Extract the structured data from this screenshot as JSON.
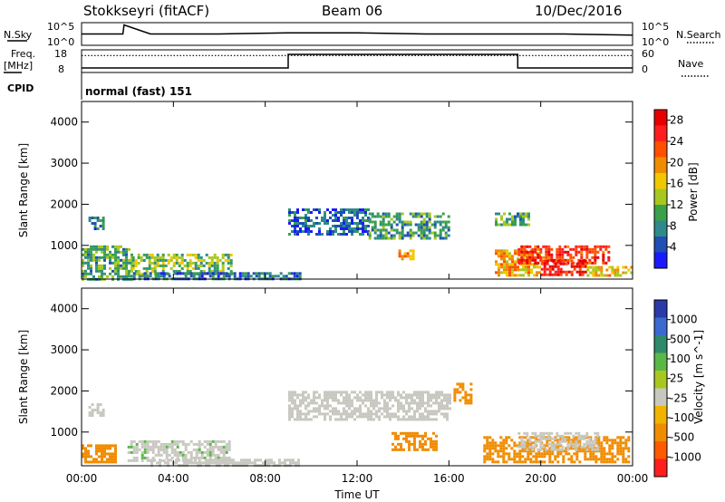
{
  "header": {
    "station": "Stokkseyri (fitACF)",
    "beam": "Beam 06",
    "date": "10/Dec/2016"
  },
  "strip_labels": {
    "nsky": "N.Sky",
    "nsky_top": "10^5",
    "nsky_bottom": "10^0",
    "nsearch": "N.Search",
    "nsearch_top": "10^5",
    "nsearch_bottom": "10^0",
    "freq_line1": "Freq.",
    "freq_line2": "[MHz]",
    "freq_top": "18",
    "freq_bottom": "8",
    "nave": "Nave",
    "nave_top": "60",
    "nave_bottom": "0",
    "cpid": "CPID",
    "cpid_value": "normal (fast) 151"
  },
  "colors": {
    "power": [
      "#1a1aff",
      "#1f4fb4",
      "#2e8a8a",
      "#3aa04a",
      "#a8c820",
      "#f0c800",
      "#f08c00",
      "#ff5000",
      "#ff1e1e",
      "#e60000"
    ],
    "velocity": [
      "#2a3aa8",
      "#3a6ad0",
      "#2e8a6a",
      "#5ab848",
      "#a8c820",
      "#c8c8c0",
      "#f0b400",
      "#f08c00",
      "#ff5a00",
      "#ff1e1e"
    ]
  },
  "chart_data": [
    {
      "type": "heatmap",
      "panel": "power",
      "ylabel": "Slant Range [km]",
      "ylim": [
        180,
        4500
      ],
      "xlim_hours": [
        0,
        24
      ],
      "x_ticks": [
        "00:00",
        "04:00",
        "08:00",
        "12:00",
        "16:00",
        "20:00",
        "00:00"
      ],
      "y_ticks": [
        1000,
        2000,
        3000,
        4000
      ],
      "colorbar": {
        "label": "Power [dB]",
        "ticks": [
          "4",
          "8",
          "12",
          "16",
          "20",
          "24",
          "28"
        ],
        "range": [
          0,
          30
        ]
      },
      "regions": [
        {
          "t0": 0.0,
          "t1": 2.2,
          "r0": 200,
          "r1": 1000,
          "value": 10
        },
        {
          "t0": 0.3,
          "t1": 1.0,
          "r0": 1400,
          "r1": 1700,
          "value": 7
        },
        {
          "t0": 2.2,
          "t1": 6.5,
          "r0": 300,
          "r1": 800,
          "value": 12
        },
        {
          "t0": 2.0,
          "t1": 9.5,
          "r0": 190,
          "r1": 350,
          "value": 6
        },
        {
          "t0": 9.0,
          "t1": 12.5,
          "r0": 1300,
          "r1": 1900,
          "value": 5
        },
        {
          "t0": 12.5,
          "t1": 16.0,
          "r0": 1200,
          "r1": 1800,
          "value": 9
        },
        {
          "t0": 13.8,
          "t1": 14.5,
          "r0": 700,
          "r1": 900,
          "value": 20
        },
        {
          "t0": 18.0,
          "t1": 20.0,
          "r0": 300,
          "r1": 900,
          "value": 18
        },
        {
          "t0": 19.0,
          "t1": 23.0,
          "r0": 550,
          "r1": 1000,
          "value": 25
        },
        {
          "t0": 20.0,
          "t1": 22.0,
          "r0": 300,
          "r1": 650,
          "value": 27
        },
        {
          "t0": 22.0,
          "t1": 23.9,
          "r0": 250,
          "r1": 500,
          "value": 17
        },
        {
          "t0": 18.0,
          "t1": 19.5,
          "r0": 1500,
          "r1": 1800,
          "value": 10
        }
      ]
    },
    {
      "type": "heatmap",
      "panel": "velocity",
      "xlabel": "Time UT",
      "ylabel": "Slant Range [km]",
      "ylim": [
        180,
        4500
      ],
      "xlim_hours": [
        0,
        24
      ],
      "x_ticks": [
        "00:00",
        "04:00",
        "08:00",
        "12:00",
        "16:00",
        "20:00",
        "00:00"
      ],
      "y_ticks": [
        1000,
        2000,
        3000,
        4000
      ],
      "colorbar": {
        "label": "Velocity [m s^-1]",
        "ticks": [
          "1000",
          "500",
          "100",
          "25",
          "-25",
          "-100",
          "-500",
          "-1000"
        ]
      },
      "regions": [
        {
          "t0": 0.0,
          "t1": 1.5,
          "r0": 250,
          "r1": 700,
          "value": -300
        },
        {
          "t0": 0.3,
          "t1": 1.0,
          "r0": 1400,
          "r1": 1700,
          "value": 0
        },
        {
          "t0": 2.0,
          "t1": 6.5,
          "r0": 300,
          "r1": 800,
          "value": 10
        },
        {
          "t0": 3.0,
          "t1": 9.5,
          "r0": 190,
          "r1": 350,
          "value": 0
        },
        {
          "t0": 9.0,
          "t1": 16.0,
          "r0": 1300,
          "r1": 2000,
          "value": 0
        },
        {
          "t0": 13.5,
          "t1": 15.5,
          "r0": 600,
          "r1": 1000,
          "value": -300
        },
        {
          "t0": 16.2,
          "t1": 17.0,
          "r0": 1700,
          "r1": 2200,
          "value": -300
        },
        {
          "t0": 17.5,
          "t1": 23.8,
          "r0": 250,
          "r1": 900,
          "value": -300
        },
        {
          "t0": 19.0,
          "t1": 22.5,
          "r0": 600,
          "r1": 1000,
          "value": 0
        }
      ]
    }
  ],
  "strip_data": {
    "nsky_hours": [
      0,
      1.8,
      1.85,
      3,
      6,
      9,
      12,
      15,
      18,
      21,
      24
    ],
    "nsky_level": [
      0.5,
      0.5,
      0.9,
      0.5,
      0.5,
      0.55,
      0.55,
      0.5,
      0.5,
      0.5,
      0.45
    ],
    "freq_steps": [
      {
        "t0": 0,
        "t1": 9,
        "level": 0.2
      },
      {
        "t0": 9,
        "t1": 19,
        "level": 0.8
      },
      {
        "t0": 19,
        "t1": 24,
        "level": 0.2
      }
    ],
    "nave_level": 0.75
  }
}
